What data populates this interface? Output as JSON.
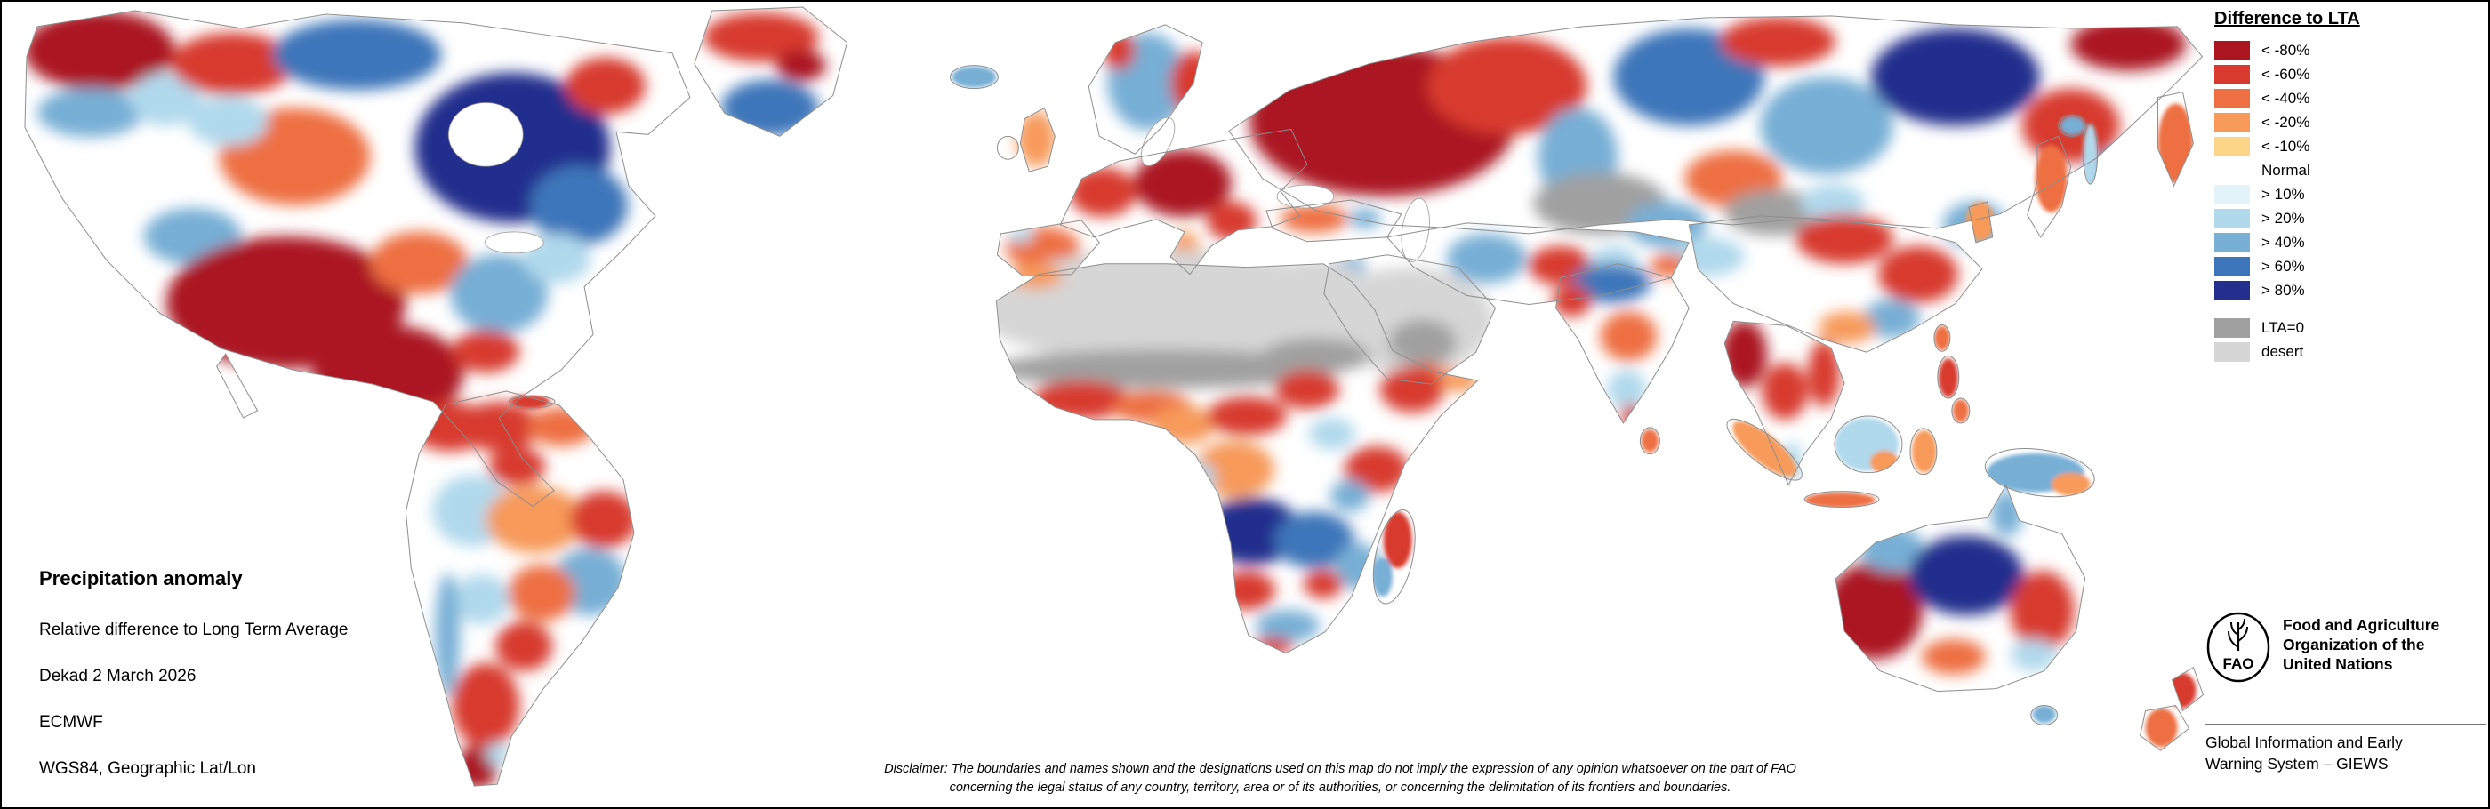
{
  "legend": {
    "title": "Difference to LTA",
    "items": [
      {
        "label": "< -80%",
        "color": "#ab1520"
      },
      {
        "label": "< -60%",
        "color": "#d83a2d"
      },
      {
        "label": "< -40%",
        "color": "#ee6f42"
      },
      {
        "label": "< -20%",
        "color": "#f79a5a"
      },
      {
        "label": "< -10%",
        "color": "#fdd588"
      },
      {
        "label": "Normal",
        "color": "#ffffff"
      },
      {
        "label": "> 10%",
        "color": "#e2f3fa"
      },
      {
        "label": "> 20%",
        "color": "#b0d9ec"
      },
      {
        "label": "> 40%",
        "color": "#77afd5"
      },
      {
        "label": "> 60%",
        "color": "#3d76ba"
      },
      {
        "label": "> 80%",
        "color": "#232e8d"
      }
    ],
    "extra_items": [
      {
        "label": "LTA=0",
        "color": "#a0a0a0"
      },
      {
        "label": "desert",
        "color": "#d6d6d6"
      }
    ]
  },
  "info": {
    "title": "Precipitation anomaly",
    "subtitle": "Relative difference to Long Term Average",
    "dekad": "Dekad 2 March 2026",
    "source": "ECMWF",
    "projection": "WGS84, Geographic Lat/Lon"
  },
  "disclaimer": {
    "line1": "Disclaimer: The boundaries and names shown and the designations used on this map do not imply the expression of any opinion whatsoever on the part of FAO",
    "line2": "concerning the legal status of any country, territory, area or of its authorities, or concerning the delimitation of its frontiers and boundaries."
  },
  "footer": {
    "logo_text": "FAO",
    "org_lines": [
      "Food and Agriculture",
      "Organization of the",
      "United Nations"
    ],
    "giews_lines": [
      "Global Information and Early",
      "Warning System – GIEWS"
    ]
  }
}
